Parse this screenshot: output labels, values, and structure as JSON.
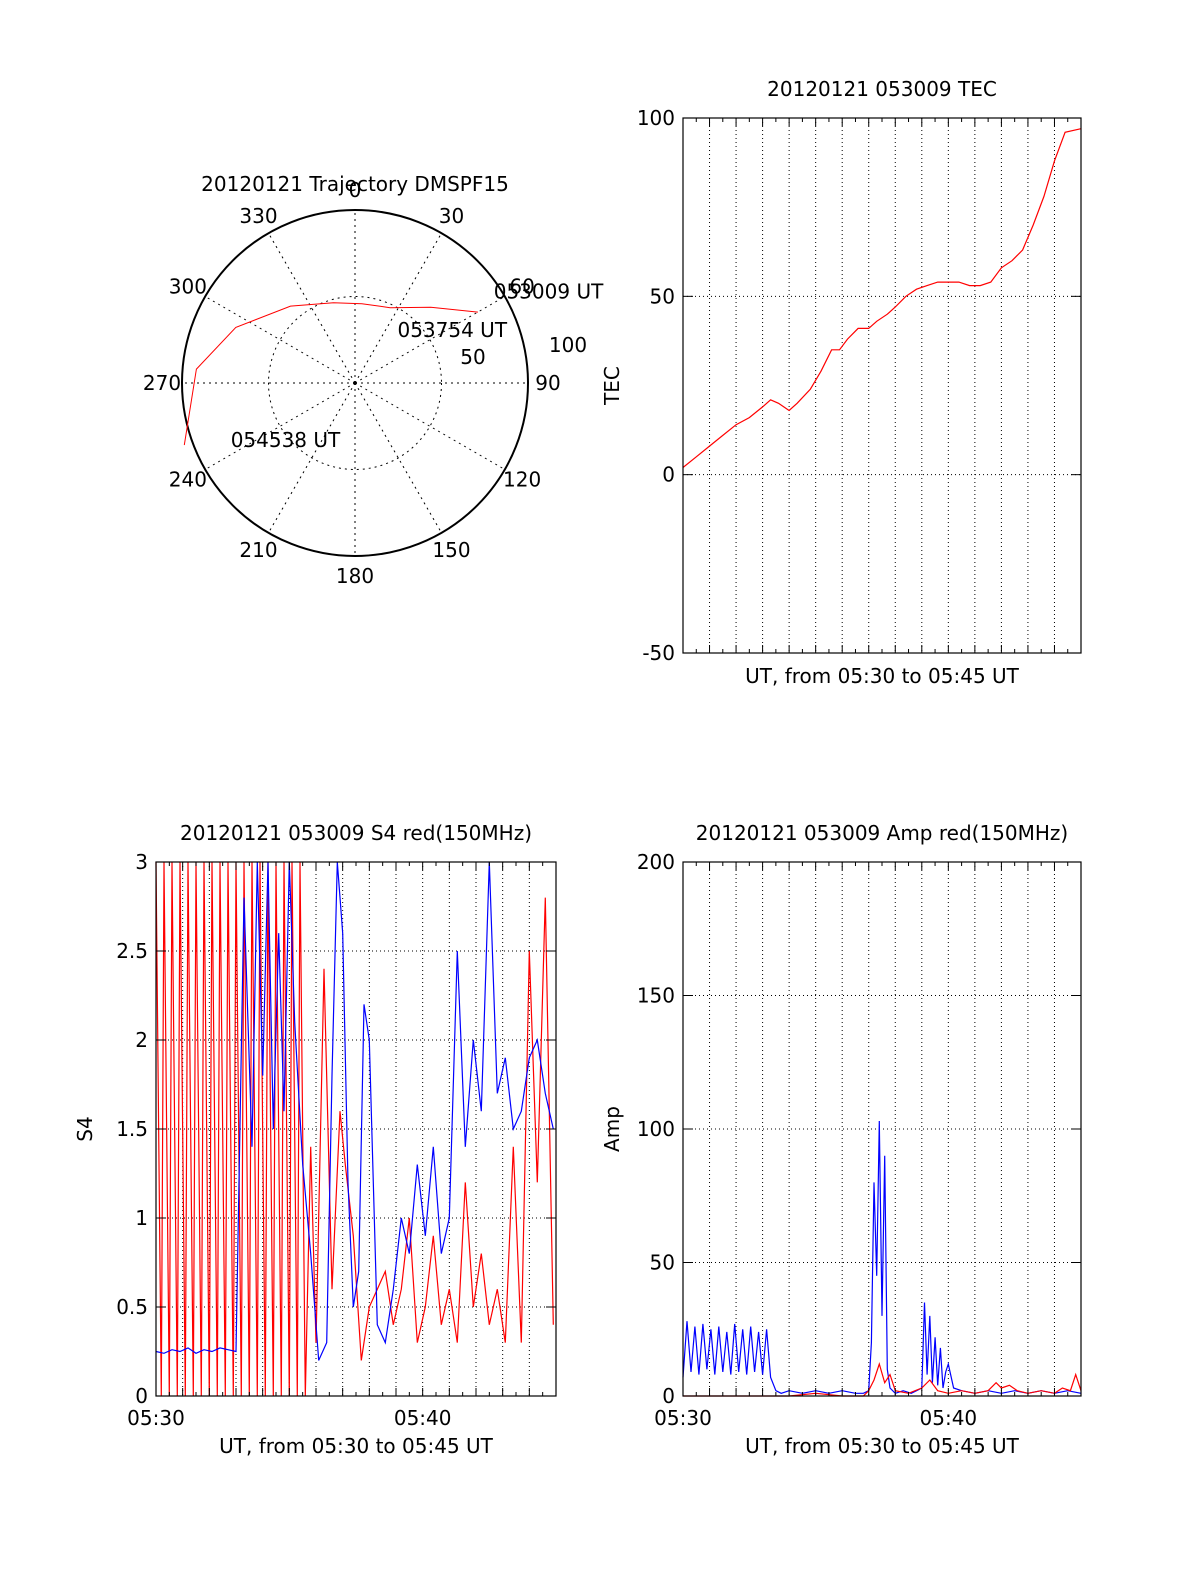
{
  "chart_data": [
    {
      "type": "polar",
      "title": "20120121 Trajectory DMSPF15",
      "angle_labels": [
        "0",
        "30",
        "60",
        "90",
        "120",
        "150",
        "180",
        "210",
        "240",
        "270",
        "300",
        "330"
      ],
      "radial_labels": [
        "50",
        "100"
      ],
      "rmax": 100,
      "trajectory_color": "#ff0000",
      "trajectory": [
        {
          "az": 60,
          "r": 82
        },
        {
          "az": 45,
          "r": 62
        },
        {
          "az": 25,
          "r": 48
        },
        {
          "az": 5,
          "r": 46
        },
        {
          "az": -15,
          "r": 48
        },
        {
          "az": -40,
          "r": 58
        },
        {
          "az": -65,
          "r": 76
        },
        {
          "az": -85,
          "r": 92
        },
        {
          "az": -110,
          "r": 105
        }
      ],
      "annotations": [
        {
          "text": "053009 UT",
          "az": 57,
          "r": 97
        },
        {
          "text": "053754 UT",
          "az": 40,
          "r": 40
        },
        {
          "text": "054538 UT",
          "az": -115,
          "r": 78
        }
      ]
    },
    {
      "type": "line",
      "title": "20120121 053009 TEC",
      "xlabel": "UT, from 05:30 to 05:45 UT",
      "ylabel": "TEC",
      "xlim": [
        0,
        15
      ],
      "ylim": [
        -50,
        100
      ],
      "yticks": [
        -50,
        0,
        50,
        100
      ],
      "grid": true,
      "series": [
        {
          "color": "#ff0000",
          "x": [
            0,
            0.5,
            1,
            1.5,
            2,
            2.5,
            3,
            3.3,
            3.6,
            4.0,
            4.3,
            4.8,
            5.2,
            5.6,
            5.9,
            6.2,
            6.6,
            7.0,
            7.3,
            7.7,
            8.0,
            8.4,
            8.8,
            9.2,
            9.6,
            10.0,
            10.4,
            10.8,
            11.2,
            11.6,
            12.0,
            12.4,
            12.8,
            13.2,
            13.6,
            14.0,
            14.4,
            15.0
          ],
          "y": [
            2,
            5,
            8,
            11,
            14,
            16,
            19,
            21,
            20,
            18,
            20,
            24,
            29,
            35,
            35,
            38,
            41,
            41,
            43,
            45,
            47,
            50,
            52,
            53,
            54,
            54,
            54,
            53,
            53,
            54,
            58,
            60,
            63,
            70,
            78,
            88,
            96,
            97
          ]
        }
      ]
    },
    {
      "type": "line",
      "title": "20120121 053009 S4 red(150MHz)",
      "xlabel": "UT, from 05:30 to 05:45 UT",
      "ylabel": "S4",
      "xlim": [
        0,
        15
      ],
      "ylim": [
        0,
        3
      ],
      "yticks": [
        0,
        0.5,
        1,
        1.5,
        2,
        2.5,
        3
      ],
      "xticks": [
        {
          "value": 0,
          "label": "05:30"
        },
        {
          "value": 10,
          "label": "05:40"
        }
      ],
      "grid": true,
      "series": [
        {
          "color": "#ff0000",
          "x": [
            0.0,
            0.2,
            0.3,
            0.5,
            0.6,
            0.8,
            0.9,
            1.1,
            1.2,
            1.4,
            1.5,
            1.7,
            1.8,
            2.0,
            2.1,
            2.3,
            2.4,
            2.6,
            2.7,
            2.9,
            3.0,
            3.2,
            3.3,
            3.5,
            3.6,
            3.8,
            3.9,
            4.1,
            4.2,
            4.4,
            4.5,
            4.7,
            4.8,
            5.0,
            5.1,
            5.3,
            5.4,
            5.6,
            5.8,
            6.0,
            6.3,
            6.6,
            6.9,
            7.1,
            7.4,
            7.7,
            8.0,
            8.3,
            8.6,
            8.9,
            9.2,
            9.5,
            9.8,
            10.1,
            10.4,
            10.7,
            11.0,
            11.3,
            11.6,
            11.9,
            12.2,
            12.5,
            12.8,
            13.1,
            13.4,
            13.7,
            14.0,
            14.3,
            14.6,
            14.9
          ],
          "y": [
            3.0,
            0.0,
            3.0,
            0.0,
            3.0,
            0.0,
            3.0,
            0.0,
            3.0,
            0.0,
            3.0,
            0.0,
            3.0,
            0.0,
            3.0,
            0.0,
            3.0,
            0.0,
            3.0,
            0.0,
            3.0,
            0.0,
            3.0,
            0.0,
            3.0,
            0.0,
            3.0,
            0.0,
            3.0,
            0.0,
            3.0,
            0.0,
            3.0,
            0.0,
            3.0,
            0.0,
            3.0,
            0.0,
            1.4,
            0.3,
            2.4,
            0.6,
            1.6,
            1.3,
            0.9,
            0.2,
            0.5,
            0.6,
            0.7,
            0.4,
            0.6,
            1.0,
            0.3,
            0.5,
            0.9,
            0.4,
            0.6,
            0.3,
            1.2,
            0.5,
            0.8,
            0.4,
            0.6,
            0.3,
            1.4,
            0.3,
            2.5,
            1.2,
            2.8,
            0.4
          ]
        },
        {
          "color": "#0000ff",
          "x": [
            0.0,
            0.3,
            0.6,
            0.9,
            1.2,
            1.5,
            1.8,
            2.1,
            2.4,
            2.7,
            3.0,
            3.3,
            3.6,
            3.8,
            4.0,
            4.2,
            4.4,
            4.6,
            4.8,
            5.0,
            5.2,
            5.5,
            5.8,
            6.1,
            6.4,
            6.6,
            6.8,
            7.0,
            7.2,
            7.4,
            7.6,
            7.8,
            8.0,
            8.3,
            8.6,
            8.9,
            9.2,
            9.5,
            9.8,
            10.1,
            10.4,
            10.7,
            11.0,
            11.3,
            11.6,
            11.9,
            12.2,
            12.5,
            12.8,
            13.1,
            13.4,
            13.7,
            14.0,
            14.3,
            14.6,
            14.9
          ],
          "y": [
            0.25,
            0.24,
            0.26,
            0.25,
            0.27,
            0.24,
            0.26,
            0.25,
            0.27,
            0.26,
            0.25,
            2.8,
            1.4,
            3.0,
            1.8,
            3.0,
            1.5,
            2.6,
            1.6,
            3.0,
            2.1,
            1.3,
            0.8,
            0.2,
            0.3,
            1.8,
            3.0,
            2.6,
            1.2,
            0.5,
            0.7,
            2.2,
            2.0,
            0.4,
            0.3,
            0.6,
            1.0,
            0.8,
            1.3,
            0.9,
            1.4,
            0.8,
            1.0,
            2.5,
            1.4,
            2.0,
            1.6,
            3.0,
            1.7,
            1.9,
            1.5,
            1.6,
            1.9,
            2.0,
            1.7,
            1.5
          ]
        }
      ]
    },
    {
      "type": "line",
      "title": "20120121 053009 Amp red(150MHz)",
      "xlabel": "UT, from 05:30 to 05:45 UT",
      "ylabel": "Amp",
      "xlim": [
        0,
        15
      ],
      "ylim": [
        0,
        200
      ],
      "yticks": [
        0,
        50,
        100,
        150,
        200
      ],
      "xticks": [
        {
          "value": 0,
          "label": "05:30"
        },
        {
          "value": 10,
          "label": "05:40"
        }
      ],
      "grid": true,
      "series": [
        {
          "color": "#0000ff",
          "x": [
            0.0,
            0.15,
            0.3,
            0.45,
            0.6,
            0.75,
            0.9,
            1.05,
            1.2,
            1.35,
            1.5,
            1.65,
            1.8,
            1.95,
            2.1,
            2.25,
            2.4,
            2.55,
            2.7,
            2.85,
            3.0,
            3.15,
            3.3,
            3.5,
            3.7,
            4.0,
            4.5,
            5.0,
            5.5,
            6.0,
            6.5,
            6.8,
            7.0,
            7.1,
            7.2,
            7.3,
            7.4,
            7.5,
            7.6,
            7.7,
            7.8,
            8.0,
            8.3,
            8.6,
            8.8,
            9.0,
            9.1,
            9.2,
            9.3,
            9.4,
            9.5,
            9.6,
            9.7,
            9.8,
            9.9,
            10.0,
            10.2,
            10.5,
            11.0,
            11.5,
            12.0,
            12.5,
            13.0,
            13.5,
            14.0,
            14.5,
            15.0
          ],
          "y": [
            7,
            28,
            9,
            26,
            8,
            27,
            10,
            25,
            8,
            26,
            9,
            24,
            8,
            27,
            9,
            25,
            8,
            26,
            9,
            24,
            8,
            25,
            7,
            2,
            1,
            2,
            1,
            2,
            1,
            2,
            1,
            1,
            2,
            20,
            80,
            45,
            103,
            30,
            90,
            10,
            3,
            1,
            2,
            1,
            2,
            3,
            35,
            8,
            30,
            5,
            22,
            4,
            18,
            3,
            9,
            12,
            3,
            2,
            1,
            2,
            1,
            2,
            1,
            2,
            1,
            2,
            1
          ]
        },
        {
          "color": "#ff0000",
          "x": [
            0.0,
            1.0,
            2.0,
            3.0,
            4.0,
            5.0,
            6.0,
            6.8,
            7.0,
            7.2,
            7.4,
            7.6,
            7.8,
            8.0,
            8.5,
            9.0,
            9.3,
            9.6,
            10.0,
            10.5,
            11.0,
            11.5,
            11.8,
            12.0,
            12.3,
            12.6,
            13.0,
            13.5,
            14.0,
            14.3,
            14.6,
            14.8,
            15.0
          ],
          "y": [
            0,
            0,
            0,
            0,
            0,
            1,
            0,
            0,
            2,
            6,
            12,
            5,
            8,
            2,
            1,
            3,
            6,
            2,
            1,
            2,
            1,
            2,
            5,
            3,
            4,
            2,
            1,
            2,
            1,
            3,
            2,
            8,
            2
          ]
        }
      ]
    }
  ]
}
